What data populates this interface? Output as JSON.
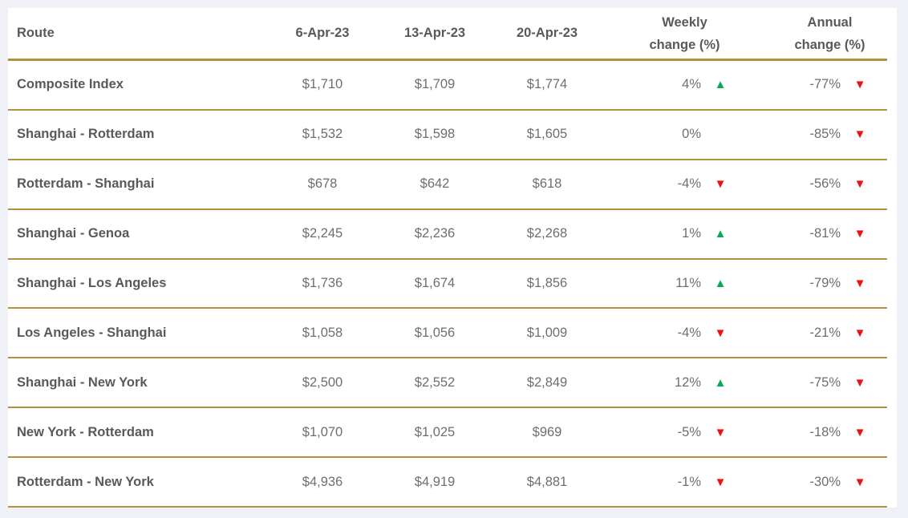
{
  "colors": {
    "page_background": "#eff1f7",
    "card_background": "#ffffff",
    "gold_border": "#b29140",
    "header_text": "#58595b",
    "route_text": "#58595b",
    "value_text": "#6e6e6e",
    "up_green": "#0aa956",
    "down_red": "#ee1111"
  },
  "icons": {
    "up": "▲",
    "down": "▼"
  },
  "header": {
    "route": "Route",
    "date_1": "6-Apr-23",
    "date_2": "13-Apr-23",
    "date_3": "20-Apr-23",
    "weekly_line1": "Weekly",
    "weekly_line2": "change (%)",
    "annual_line1": "Annual",
    "annual_line2": "change (%)"
  },
  "chart_data": {
    "type": "table",
    "columns": [
      "Route",
      "6-Apr-23",
      "13-Apr-23",
      "20-Apr-23",
      "Weekly change (%)",
      "Annual change (%)"
    ],
    "rows": [
      {
        "route": "Composite Index",
        "prices": [
          "$1,710",
          "$1,709",
          "$1,774"
        ],
        "weekly_change": "4%",
        "weekly_trend": "up",
        "annual_change": "-77%",
        "annual_trend": "down"
      },
      {
        "route": "Shanghai - Rotterdam",
        "prices": [
          "$1,532",
          "$1,598",
          "$1,605"
        ],
        "weekly_change": "0%",
        "weekly_trend": "none",
        "annual_change": "-85%",
        "annual_trend": "down"
      },
      {
        "route": "Rotterdam - Shanghai",
        "prices": [
          "$678",
          "$642",
          "$618"
        ],
        "weekly_change": "-4%",
        "weekly_trend": "down",
        "annual_change": "-56%",
        "annual_trend": "down"
      },
      {
        "route": "Shanghai - Genoa",
        "prices": [
          "$2,245",
          "$2,236",
          "$2,268"
        ],
        "weekly_change": "1%",
        "weekly_trend": "up",
        "annual_change": "-81%",
        "annual_trend": "down"
      },
      {
        "route": "Shanghai - Los Angeles",
        "prices": [
          "$1,736",
          "$1,674",
          "$1,856"
        ],
        "weekly_change": "11%",
        "weekly_trend": "up",
        "annual_change": "-79%",
        "annual_trend": "down"
      },
      {
        "route": "Los Angeles - Shanghai",
        "prices": [
          "$1,058",
          "$1,056",
          "$1,009"
        ],
        "weekly_change": "-4%",
        "weekly_trend": "down",
        "annual_change": "-21%",
        "annual_trend": "down"
      },
      {
        "route": "Shanghai - New York",
        "prices": [
          "$2,500",
          "$2,552",
          "$2,849"
        ],
        "weekly_change": "12%",
        "weekly_trend": "up",
        "annual_change": "-75%",
        "annual_trend": "down"
      },
      {
        "route": "New York - Rotterdam",
        "prices": [
          "$1,070",
          "$1,025",
          "$969"
        ],
        "weekly_change": "-5%",
        "weekly_trend": "down",
        "annual_change": "-18%",
        "annual_trend": "down"
      },
      {
        "route": "Rotterdam - New York",
        "prices": [
          "$4,936",
          "$4,919",
          "$4,881"
        ],
        "weekly_change": "-1%",
        "weekly_trend": "down",
        "annual_change": "-30%",
        "annual_trend": "down"
      }
    ]
  }
}
